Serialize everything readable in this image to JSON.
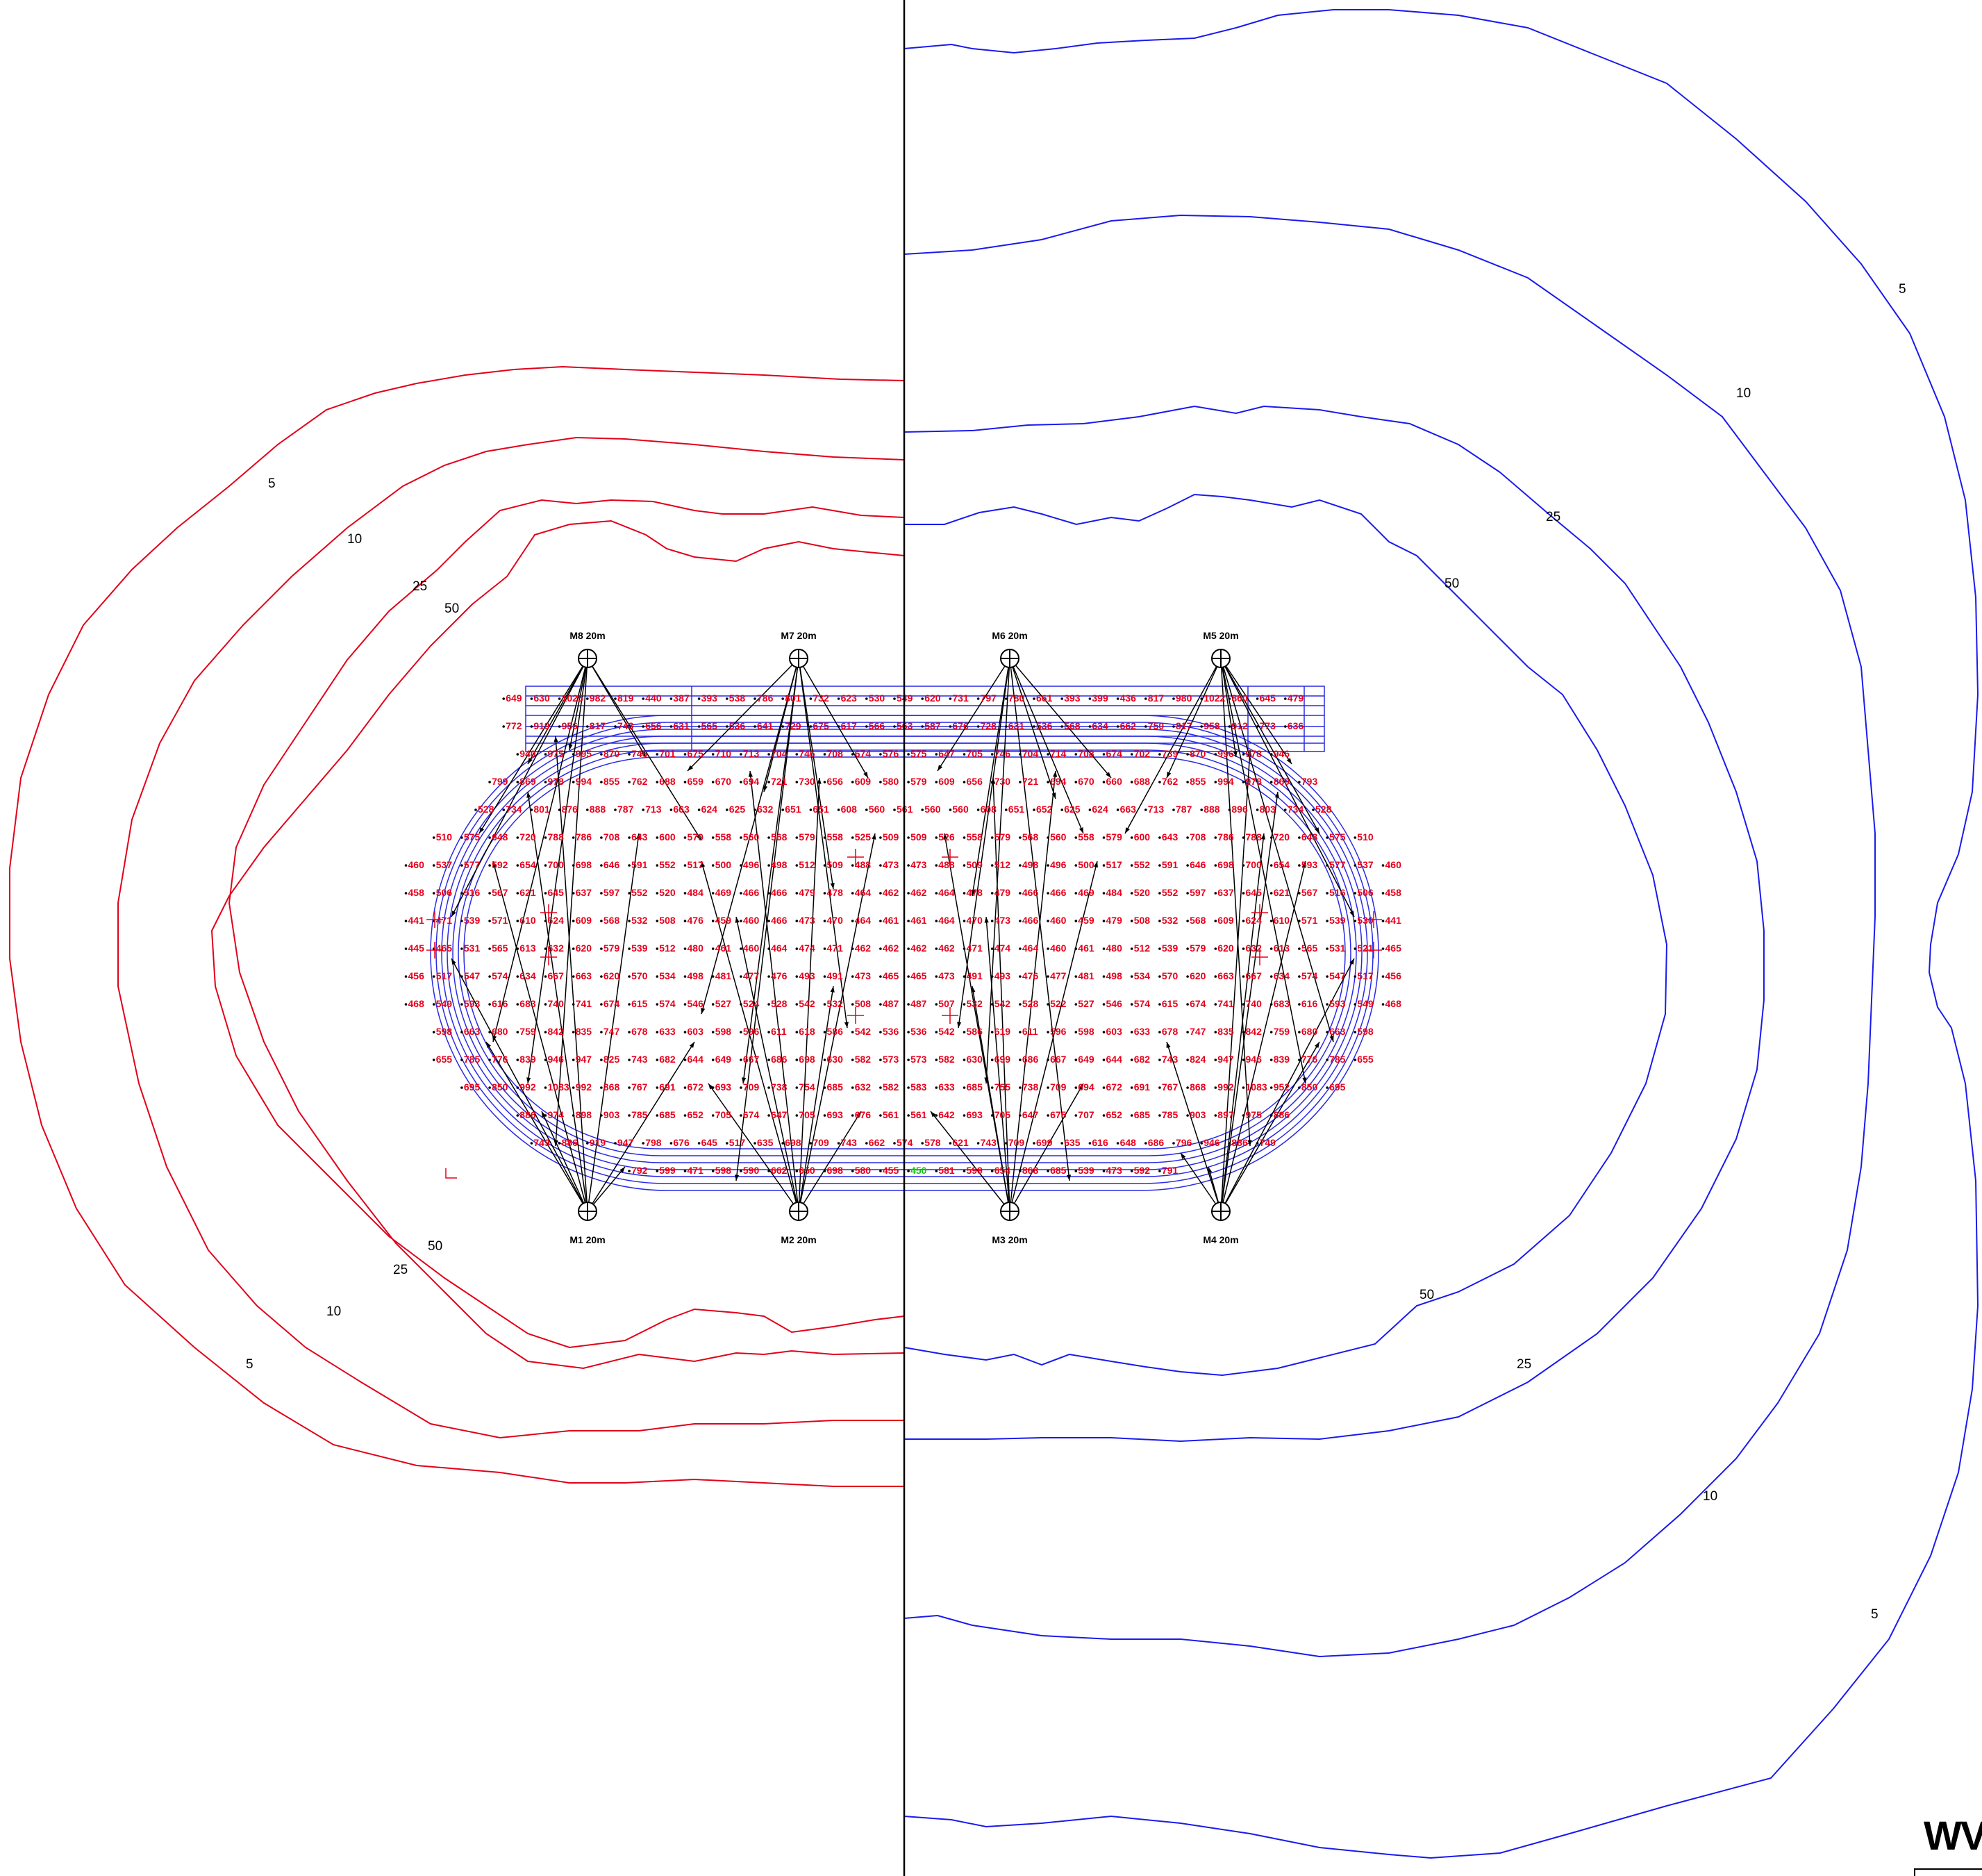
{
  "colors": {
    "left_contours": "#e2001a",
    "right_contours": "#1a1aee",
    "track": "#2a2ae6",
    "lux_values": "#e8001c",
    "highlight_value": "#19c419",
    "beams": "#000000",
    "divider": "#000000"
  },
  "contour_labels": {
    "left": [
      "5",
      "10",
      "25",
      "50",
      "50",
      "25",
      "10",
      "5"
    ],
    "right": [
      "5",
      "10",
      "25",
      "50",
      "50",
      "25",
      "10",
      "5"
    ]
  },
  "masts": [
    {
      "id": "M1",
      "label": "M1 20m"
    },
    {
      "id": "M2",
      "label": "M2 20m"
    },
    {
      "id": "M3",
      "label": "M3 20m"
    },
    {
      "id": "M4",
      "label": "M4 20m"
    },
    {
      "id": "M5",
      "label": "M5 20m"
    },
    {
      "id": "M6",
      "label": "M6 20m"
    },
    {
      "id": "M7",
      "label": "M7 20m"
    },
    {
      "id": "M8",
      "label": "M8 20m"
    }
  ],
  "lux_grid": {
    "rows": [
      [
        "649",
        "630",
        "1025",
        "982",
        "819",
        "440",
        "387",
        "393",
        "538",
        "786",
        "801",
        "732",
        "623",
        "530",
        "549",
        "620",
        "731",
        "797",
        "780",
        "661",
        "393",
        "399",
        "436",
        "817",
        "980",
        "1022",
        "860",
        "645",
        "479"
      ],
      [
        "772",
        "919",
        "956",
        "817",
        "743",
        "656",
        "631",
        "565",
        "536",
        "641",
        "729",
        "675",
        "617",
        "566",
        "563",
        "587",
        "676",
        "728",
        "631",
        "536",
        "568",
        "634",
        "662",
        "750",
        "817",
        "958",
        "912",
        "773",
        "636"
      ],
      [
        "940",
        "975",
        "995",
        "870",
        "746",
        "701",
        "675",
        "710",
        "713",
        "704",
        "746",
        "708",
        "674",
        "576",
        "575",
        "647",
        "705",
        "746",
        "704",
        "714",
        "708",
        "674",
        "702",
        "739",
        "870",
        "996",
        "978",
        "946"
      ],
      [
        "799",
        "869",
        "978",
        "994",
        "855",
        "762",
        "688",
        "659",
        "670",
        "694",
        "721",
        "730",
        "656",
        "609",
        "580",
        "579",
        "609",
        "656",
        "730",
        "721",
        "694",
        "670",
        "660",
        "688",
        "762",
        "855",
        "994",
        "978",
        "869",
        "793"
      ],
      [
        "528",
        "734",
        "801",
        "876",
        "888",
        "787",
        "713",
        "663",
        "624",
        "625",
        "632",
        "651",
        "651",
        "608",
        "560",
        "561",
        "560",
        "560",
        "608",
        "651",
        "652",
        "625",
        "624",
        "663",
        "713",
        "787",
        "888",
        "896",
        "803",
        "734",
        "528"
      ],
      [
        "510",
        "575",
        "648",
        "720",
        "788",
        "786",
        "708",
        "643",
        "600",
        "579",
        "558",
        "560",
        "568",
        "579",
        "558",
        "525",
        "509",
        "509",
        "526",
        "558",
        "579",
        "568",
        "560",
        "558",
        "579",
        "600",
        "643",
        "708",
        "786",
        "788",
        "720",
        "648",
        "575",
        "510"
      ],
      [
        "460",
        "537",
        "577",
        "592",
        "654",
        "700",
        "698",
        "646",
        "591",
        "552",
        "517",
        "500",
        "496",
        "498",
        "512",
        "509",
        "488",
        "473",
        "473",
        "488",
        "509",
        "512",
        "498",
        "496",
        "500",
        "517",
        "552",
        "591",
        "646",
        "698",
        "700",
        "654",
        "593",
        "577",
        "537",
        "460"
      ],
      [
        "458",
        "506",
        "516",
        "567",
        "621",
        "645",
        "637",
        "597",
        "552",
        "520",
        "484",
        "469",
        "466",
        "466",
        "479",
        "478",
        "464",
        "462",
        "462",
        "464",
        "478",
        "479",
        "466",
        "466",
        "469",
        "484",
        "520",
        "552",
        "597",
        "637",
        "645",
        "621",
        "567",
        "516",
        "506",
        "458"
      ],
      [
        "441",
        "471",
        "539",
        "571",
        "610",
        "624",
        "609",
        "568",
        "532",
        "508",
        "476",
        "459",
        "460",
        "466",
        "473",
        "470",
        "464",
        "461",
        "461",
        "464",
        "470",
        "473",
        "466",
        "460",
        "459",
        "479",
        "508",
        "532",
        "568",
        "609",
        "624",
        "610",
        "571",
        "539",
        "530",
        "441"
      ],
      [
        "445",
        "465",
        "531",
        "565",
        "613",
        "632",
        "620",
        "579",
        "539",
        "512",
        "480",
        "461",
        "460",
        "464",
        "474",
        "471",
        "462",
        "462",
        "462",
        "462",
        "471",
        "474",
        "464",
        "460",
        "461",
        "480",
        "512",
        "539",
        "579",
        "620",
        "632",
        "613",
        "565",
        "531",
        "521",
        "465"
      ],
      [
        "456",
        "517",
        "547",
        "574",
        "634",
        "667",
        "663",
        "620",
        "570",
        "534",
        "498",
        "481",
        "477",
        "476",
        "493",
        "491",
        "473",
        "465",
        "465",
        "473",
        "491",
        "493",
        "476",
        "477",
        "481",
        "498",
        "534",
        "570",
        "620",
        "663",
        "667",
        "634",
        "574",
        "547",
        "517",
        "456"
      ],
      [
        "468",
        "549",
        "593",
        "616",
        "683",
        "740",
        "741",
        "674",
        "615",
        "574",
        "546",
        "527",
        "524",
        "528",
        "542",
        "532",
        "508",
        "487",
        "487",
        "507",
        "532",
        "542",
        "528",
        "522",
        "527",
        "546",
        "574",
        "615",
        "674",
        "741",
        "740",
        "683",
        "616",
        "593",
        "549",
        "468"
      ],
      [
        "598",
        "663",
        "680",
        "759",
        "842",
        "835",
        "747",
        "678",
        "633",
        "603",
        "598",
        "596",
        "611",
        "618",
        "586",
        "542",
        "536",
        "536",
        "542",
        "586",
        "619",
        "611",
        "596",
        "598",
        "603",
        "633",
        "678",
        "747",
        "835",
        "842",
        "759",
        "680",
        "663",
        "598"
      ],
      [
        "655",
        "785",
        "776",
        "839",
        "946",
        "947",
        "825",
        "743",
        "682",
        "644",
        "649",
        "667",
        "686",
        "698",
        "630",
        "582",
        "573",
        "573",
        "582",
        "630",
        "699",
        "686",
        "667",
        "649",
        "644",
        "682",
        "743",
        "824",
        "947",
        "946",
        "839",
        "776",
        "785",
        "655"
      ],
      [
        "695",
        "850",
        "992",
        "1083",
        "992",
        "868",
        "767",
        "691",
        "672",
        "693",
        "709",
        "738",
        "754",
        "685",
        "632",
        "582",
        "583",
        "633",
        "685",
        "755",
        "738",
        "709",
        "694",
        "672",
        "691",
        "767",
        "868",
        "992",
        "1083",
        "952",
        "850",
        "695"
      ],
      [
        "886",
        "974",
        "898",
        "903",
        "785",
        "685",
        "652",
        "705",
        "674",
        "647",
        "705",
        "693",
        "676",
        "561",
        "561",
        "642",
        "693",
        "705",
        "647",
        "675",
        "707",
        "652",
        "685",
        "785",
        "903",
        "897",
        "975",
        "886"
      ],
      [
        "749",
        "886",
        "919",
        "947",
        "798",
        "676",
        "645",
        "517",
        "635",
        "698",
        "709",
        "743",
        "662",
        "574",
        "578",
        "621",
        "743",
        "709",
        "699",
        "635",
        "616",
        "648",
        "686",
        "796",
        "946",
        "886",
        "749"
      ],
      [
        "792",
        "599",
        "471",
        "598",
        "590",
        "662",
        "650",
        "698",
        "580",
        "455",
        "450",
        "581",
        "599",
        "654",
        "868",
        "685",
        "539",
        "473",
        "592",
        "791"
      ]
    ],
    "highlight": {
      "row": 17,
      "col": 10
    }
  },
  "branding": {
    "text": "WV"
  }
}
